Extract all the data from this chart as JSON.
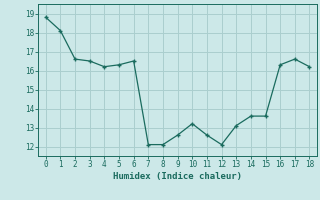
{
  "x": [
    0,
    1,
    2,
    3,
    4,
    5,
    6,
    7,
    8,
    9,
    10,
    11,
    12,
    13,
    14,
    15,
    16,
    17,
    18
  ],
  "y": [
    18.8,
    18.1,
    16.6,
    16.5,
    16.2,
    16.3,
    16.5,
    12.1,
    12.1,
    12.6,
    13.2,
    12.6,
    12.1,
    13.1,
    13.6,
    13.6,
    16.3,
    16.6,
    16.2
  ],
  "line_color": "#1a6b5e",
  "bg_color": "#cce8e8",
  "grid_color": "#aacece",
  "xlabel": "Humidex (Indice chaleur)",
  "xlim": [
    -0.5,
    18.5
  ],
  "ylim": [
    11.5,
    19.5
  ],
  "yticks": [
    12,
    13,
    14,
    15,
    16,
    17,
    18,
    19
  ],
  "xticks": [
    0,
    1,
    2,
    3,
    4,
    5,
    6,
    7,
    8,
    9,
    10,
    11,
    12,
    13,
    14,
    15,
    16,
    17,
    18
  ],
  "font_color": "#1a6b5e"
}
